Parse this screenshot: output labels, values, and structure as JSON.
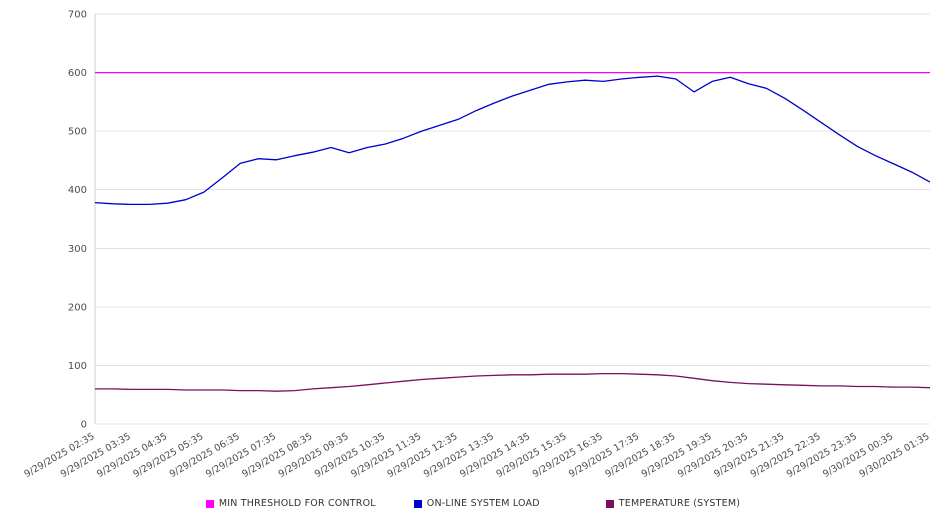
{
  "chart_data": {
    "type": "line",
    "title": "",
    "xlabel": "",
    "ylabel": "",
    "ylim": [
      0,
      700
    ],
    "y_ticks": [
      0,
      100,
      200,
      300,
      400,
      500,
      600,
      700
    ],
    "grid": "horizontal",
    "legend_position": "bottom",
    "points_per_label": 2,
    "x_labels": [
      "9/29/2025 02:35",
      "9/29/2025 03:35",
      "9/29/2025 04:35",
      "9/29/2025 05:35",
      "9/29/2025 06:35",
      "9/29/2025 07:35",
      "9/29/2025 08:35",
      "9/29/2025 09:35",
      "9/29/2025 10:35",
      "9/29/2025 11:35",
      "9/29/2025 12:35",
      "9/29/2025 13:35",
      "9/29/2025 14:35",
      "9/29/2025 15:35",
      "9/29/2025 16:35",
      "9/29/2025 17:35",
      "9/29/2025 18:35",
      "9/29/2025 19:35",
      "9/29/2025 20:35",
      "9/29/2025 21:35",
      "9/29/2025 22:35",
      "9/29/2025 23:35",
      "9/30/2025 00:35",
      "9/30/2025 01:35"
    ],
    "series": [
      {
        "name": "MIN THRESHOLD FOR CONTROL",
        "color": "#FF00FF",
        "constant": true,
        "value": 600
      },
      {
        "name": "ON-LINE SYSTEM LOAD",
        "color": "#0000CD",
        "values": [
          378,
          376,
          375,
          375,
          377,
          383,
          396,
          420,
          445,
          453,
          451,
          458,
          464,
          472,
          463,
          472,
          478,
          488,
          500,
          510,
          520,
          535,
          548,
          560,
          570,
          580,
          584,
          587,
          585,
          589,
          592,
          594,
          589,
          567,
          585,
          592,
          581,
          573,
          556,
          536,
          515,
          494,
          474,
          458,
          444,
          430,
          413
        ]
      },
      {
        "name": "TEMPERATURE (SYSTEM)",
        "color": "#7A0E60",
        "values": [
          60,
          60,
          59,
          59,
          59,
          58,
          58,
          58,
          57,
          57,
          56,
          57,
          60,
          62,
          64,
          67,
          70,
          73,
          76,
          78,
          80,
          82,
          83,
          84,
          84,
          85,
          85,
          85,
          86,
          86,
          85,
          84,
          82,
          78,
          74,
          71,
          69,
          68,
          67,
          66,
          65,
          65,
          64,
          64,
          63,
          63,
          62
        ]
      }
    ]
  }
}
